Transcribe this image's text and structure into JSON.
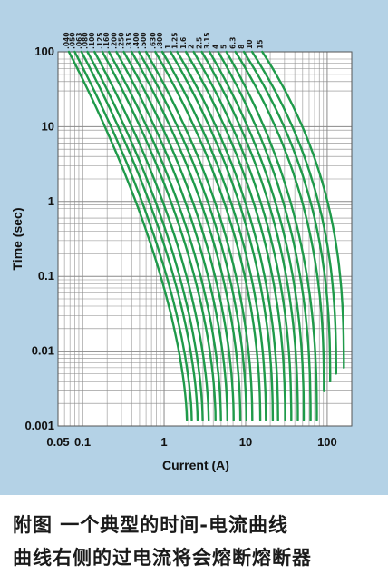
{
  "chart_data": {
    "type": "line",
    "xlabel": "Current (A)",
    "ylabel": "Time (sec)",
    "x_scale": "log",
    "y_scale": "log",
    "xlim": [
      0.05,
      200
    ],
    "ylim": [
      0.001,
      100
    ],
    "x_ticks": [
      "0.05",
      "0.1",
      "1",
      "10",
      "100"
    ],
    "y_ticks": [
      "100",
      "10",
      "1",
      "0.1",
      "0.01",
      "0.001"
    ],
    "grid": true,
    "line_color": "#1f9a4a",
    "series_names": [
      ".040",
      ".050",
      ".063",
      ".080",
      ".100",
      ".125",
      ".160",
      ".200",
      ".250",
      ".315",
      ".400",
      ".500",
      ".630",
      ".800",
      "1",
      "1.25",
      "1.6",
      "2",
      "2.5",
      "3.15",
      "4",
      "5",
      "6.3",
      "8",
      "10",
      "15"
    ],
    "series_label_x": [
      0.068,
      0.08,
      0.097,
      0.115,
      0.14,
      0.175,
      0.21,
      0.26,
      0.32,
      0.4,
      0.49,
      0.6,
      0.78,
      0.95,
      1.2,
      1.45,
      1.85,
      2.3,
      2.9,
      3.6,
      4.6,
      5.8,
      7.5,
      9.5,
      12,
      16
    ]
  },
  "captions": {
    "line1": "附图   一个典型的时间-电流曲线",
    "line2": "曲线右侧的过电流将会熔断熔断器"
  }
}
